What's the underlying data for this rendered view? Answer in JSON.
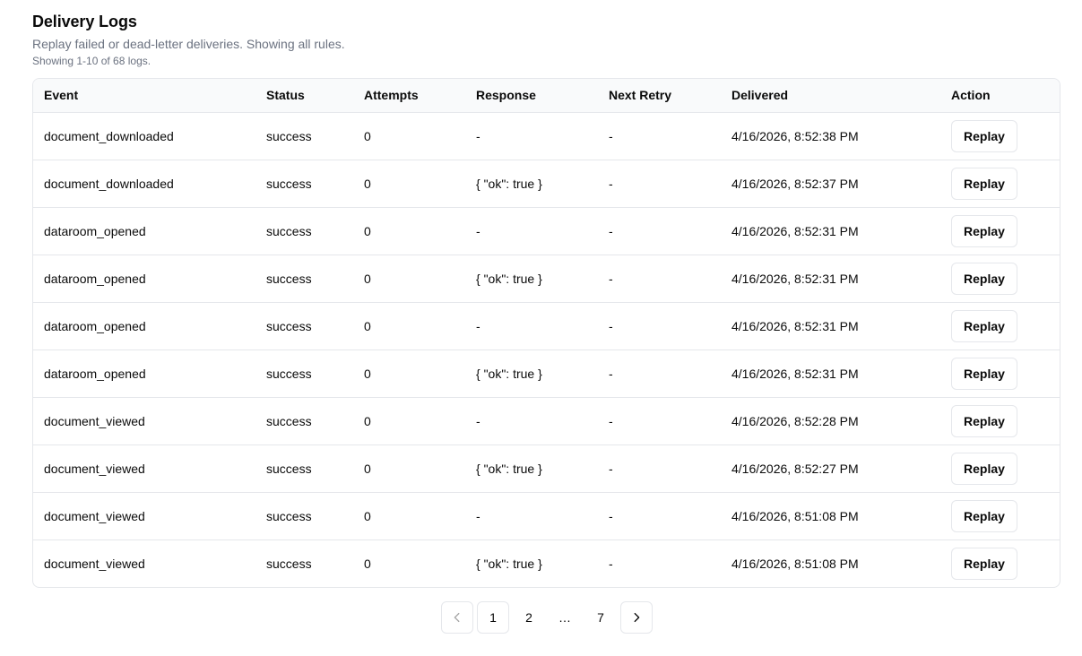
{
  "header": {
    "title": "Delivery Logs",
    "subtitle": "Replay failed or dead-letter deliveries. Showing all rules.",
    "count": "Showing 1-10 of 68 logs."
  },
  "table": {
    "columns": [
      "Event",
      "Status",
      "Attempts",
      "Response",
      "Next Retry",
      "Delivered",
      "Action"
    ],
    "rows": [
      {
        "event": "document_downloaded",
        "status": "success",
        "attempts": "0",
        "response": "-",
        "next_retry": "-",
        "delivered": "4/16/2026, 8:52:38 PM",
        "action": "Replay"
      },
      {
        "event": "document_downloaded",
        "status": "success",
        "attempts": "0",
        "response": "{ \"ok\": true }",
        "next_retry": "-",
        "delivered": "4/16/2026, 8:52:37 PM",
        "action": "Replay"
      },
      {
        "event": "dataroom_opened",
        "status": "success",
        "attempts": "0",
        "response": "-",
        "next_retry": "-",
        "delivered": "4/16/2026, 8:52:31 PM",
        "action": "Replay"
      },
      {
        "event": "dataroom_opened",
        "status": "success",
        "attempts": "0",
        "response": "{ \"ok\": true }",
        "next_retry": "-",
        "delivered": "4/16/2026, 8:52:31 PM",
        "action": "Replay"
      },
      {
        "event": "dataroom_opened",
        "status": "success",
        "attempts": "0",
        "response": "-",
        "next_retry": "-",
        "delivered": "4/16/2026, 8:52:31 PM",
        "action": "Replay"
      },
      {
        "event": "dataroom_opened",
        "status": "success",
        "attempts": "0",
        "response": "{ \"ok\": true }",
        "next_retry": "-",
        "delivered": "4/16/2026, 8:52:31 PM",
        "action": "Replay"
      },
      {
        "event": "document_viewed",
        "status": "success",
        "attempts": "0",
        "response": "-",
        "next_retry": "-",
        "delivered": "4/16/2026, 8:52:28 PM",
        "action": "Replay"
      },
      {
        "event": "document_viewed",
        "status": "success",
        "attempts": "0",
        "response": "{ \"ok\": true }",
        "next_retry": "-",
        "delivered": "4/16/2026, 8:52:27 PM",
        "action": "Replay"
      },
      {
        "event": "document_viewed",
        "status": "success",
        "attempts": "0",
        "response": "-",
        "next_retry": "-",
        "delivered": "4/16/2026, 8:51:08 PM",
        "action": "Replay"
      },
      {
        "event": "document_viewed",
        "status": "success",
        "attempts": "0",
        "response": "{ \"ok\": true }",
        "next_retry": "-",
        "delivered": "4/16/2026, 8:51:08 PM",
        "action": "Replay"
      }
    ]
  },
  "pagination": {
    "prev_icon": "chevron-left-icon",
    "pages": [
      "1",
      "2",
      "…",
      "7"
    ],
    "current": "1",
    "next_icon": "chevron-right-icon"
  }
}
